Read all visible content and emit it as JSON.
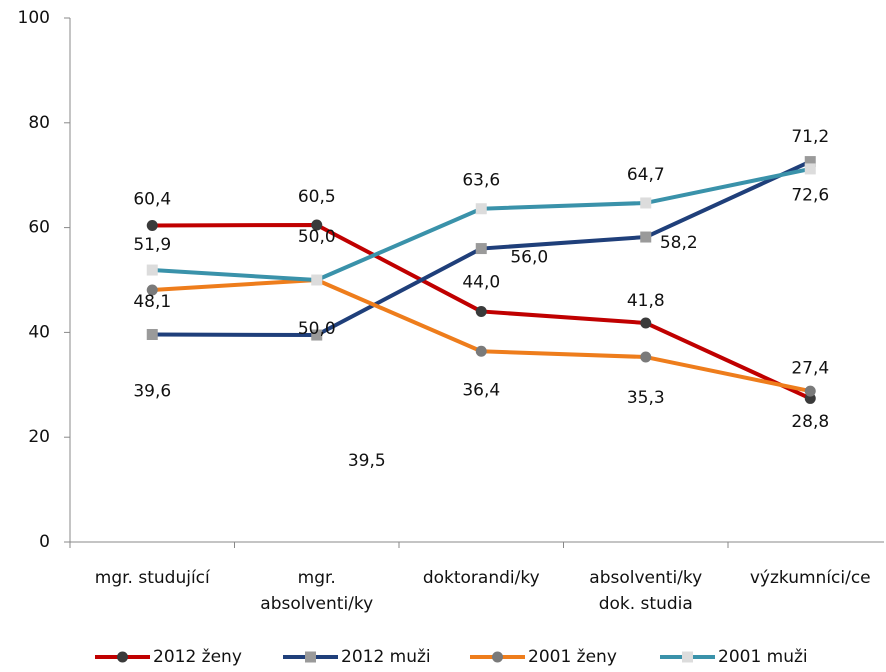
{
  "chart_data": {
    "type": "line",
    "categories": [
      "mgr. studující",
      [
        "mgr.",
        "absolventi/ky"
      ],
      "doktorandi/ky",
      [
        "absolventi/ky",
        "dok. studia"
      ],
      "výzkumníci/ce"
    ],
    "series": [
      {
        "name": "2012 ženy",
        "color": "#c00000",
        "marker": "circle",
        "marker_color": "#3a3a3a",
        "values": [
          60.4,
          60.5,
          44.0,
          41.8,
          27.4
        ],
        "value_labels": [
          "60,4",
          "60,5",
          "44,0",
          "41,8",
          "27,4"
        ]
      },
      {
        "name": "2012 muži",
        "color": "#1f3f7a",
        "marker": "square",
        "marker_color": "#9a9a9a",
        "values": [
          39.6,
          39.5,
          56.0,
          58.2,
          72.6
        ],
        "value_labels": [
          "39,6",
          "39,5",
          "56,0",
          "58,2",
          "72,6"
        ]
      },
      {
        "name": "2001 ženy",
        "color": "#ee7d1c",
        "marker": "circle",
        "marker_color": "#7a7a7a",
        "values": [
          48.1,
          50.0,
          36.4,
          35.3,
          28.8
        ],
        "value_labels": [
          "48,1",
          "50,0",
          "36,4",
          "35,3",
          "28,8"
        ]
      },
      {
        "name": "2001 muži",
        "color": "#3a92aa",
        "marker": "square",
        "marker_color": "#dcdcdc",
        "values": [
          51.9,
          50.0,
          63.6,
          64.7,
          71.2
        ],
        "value_labels": [
          "51,9",
          "50,0",
          "63,6",
          "64,7",
          "71,2"
        ]
      }
    ],
    "ylim": [
      0,
      100
    ],
    "yticks": [
      0,
      20,
      40,
      60,
      80,
      100
    ],
    "grid": false,
    "legend": "bottom"
  }
}
